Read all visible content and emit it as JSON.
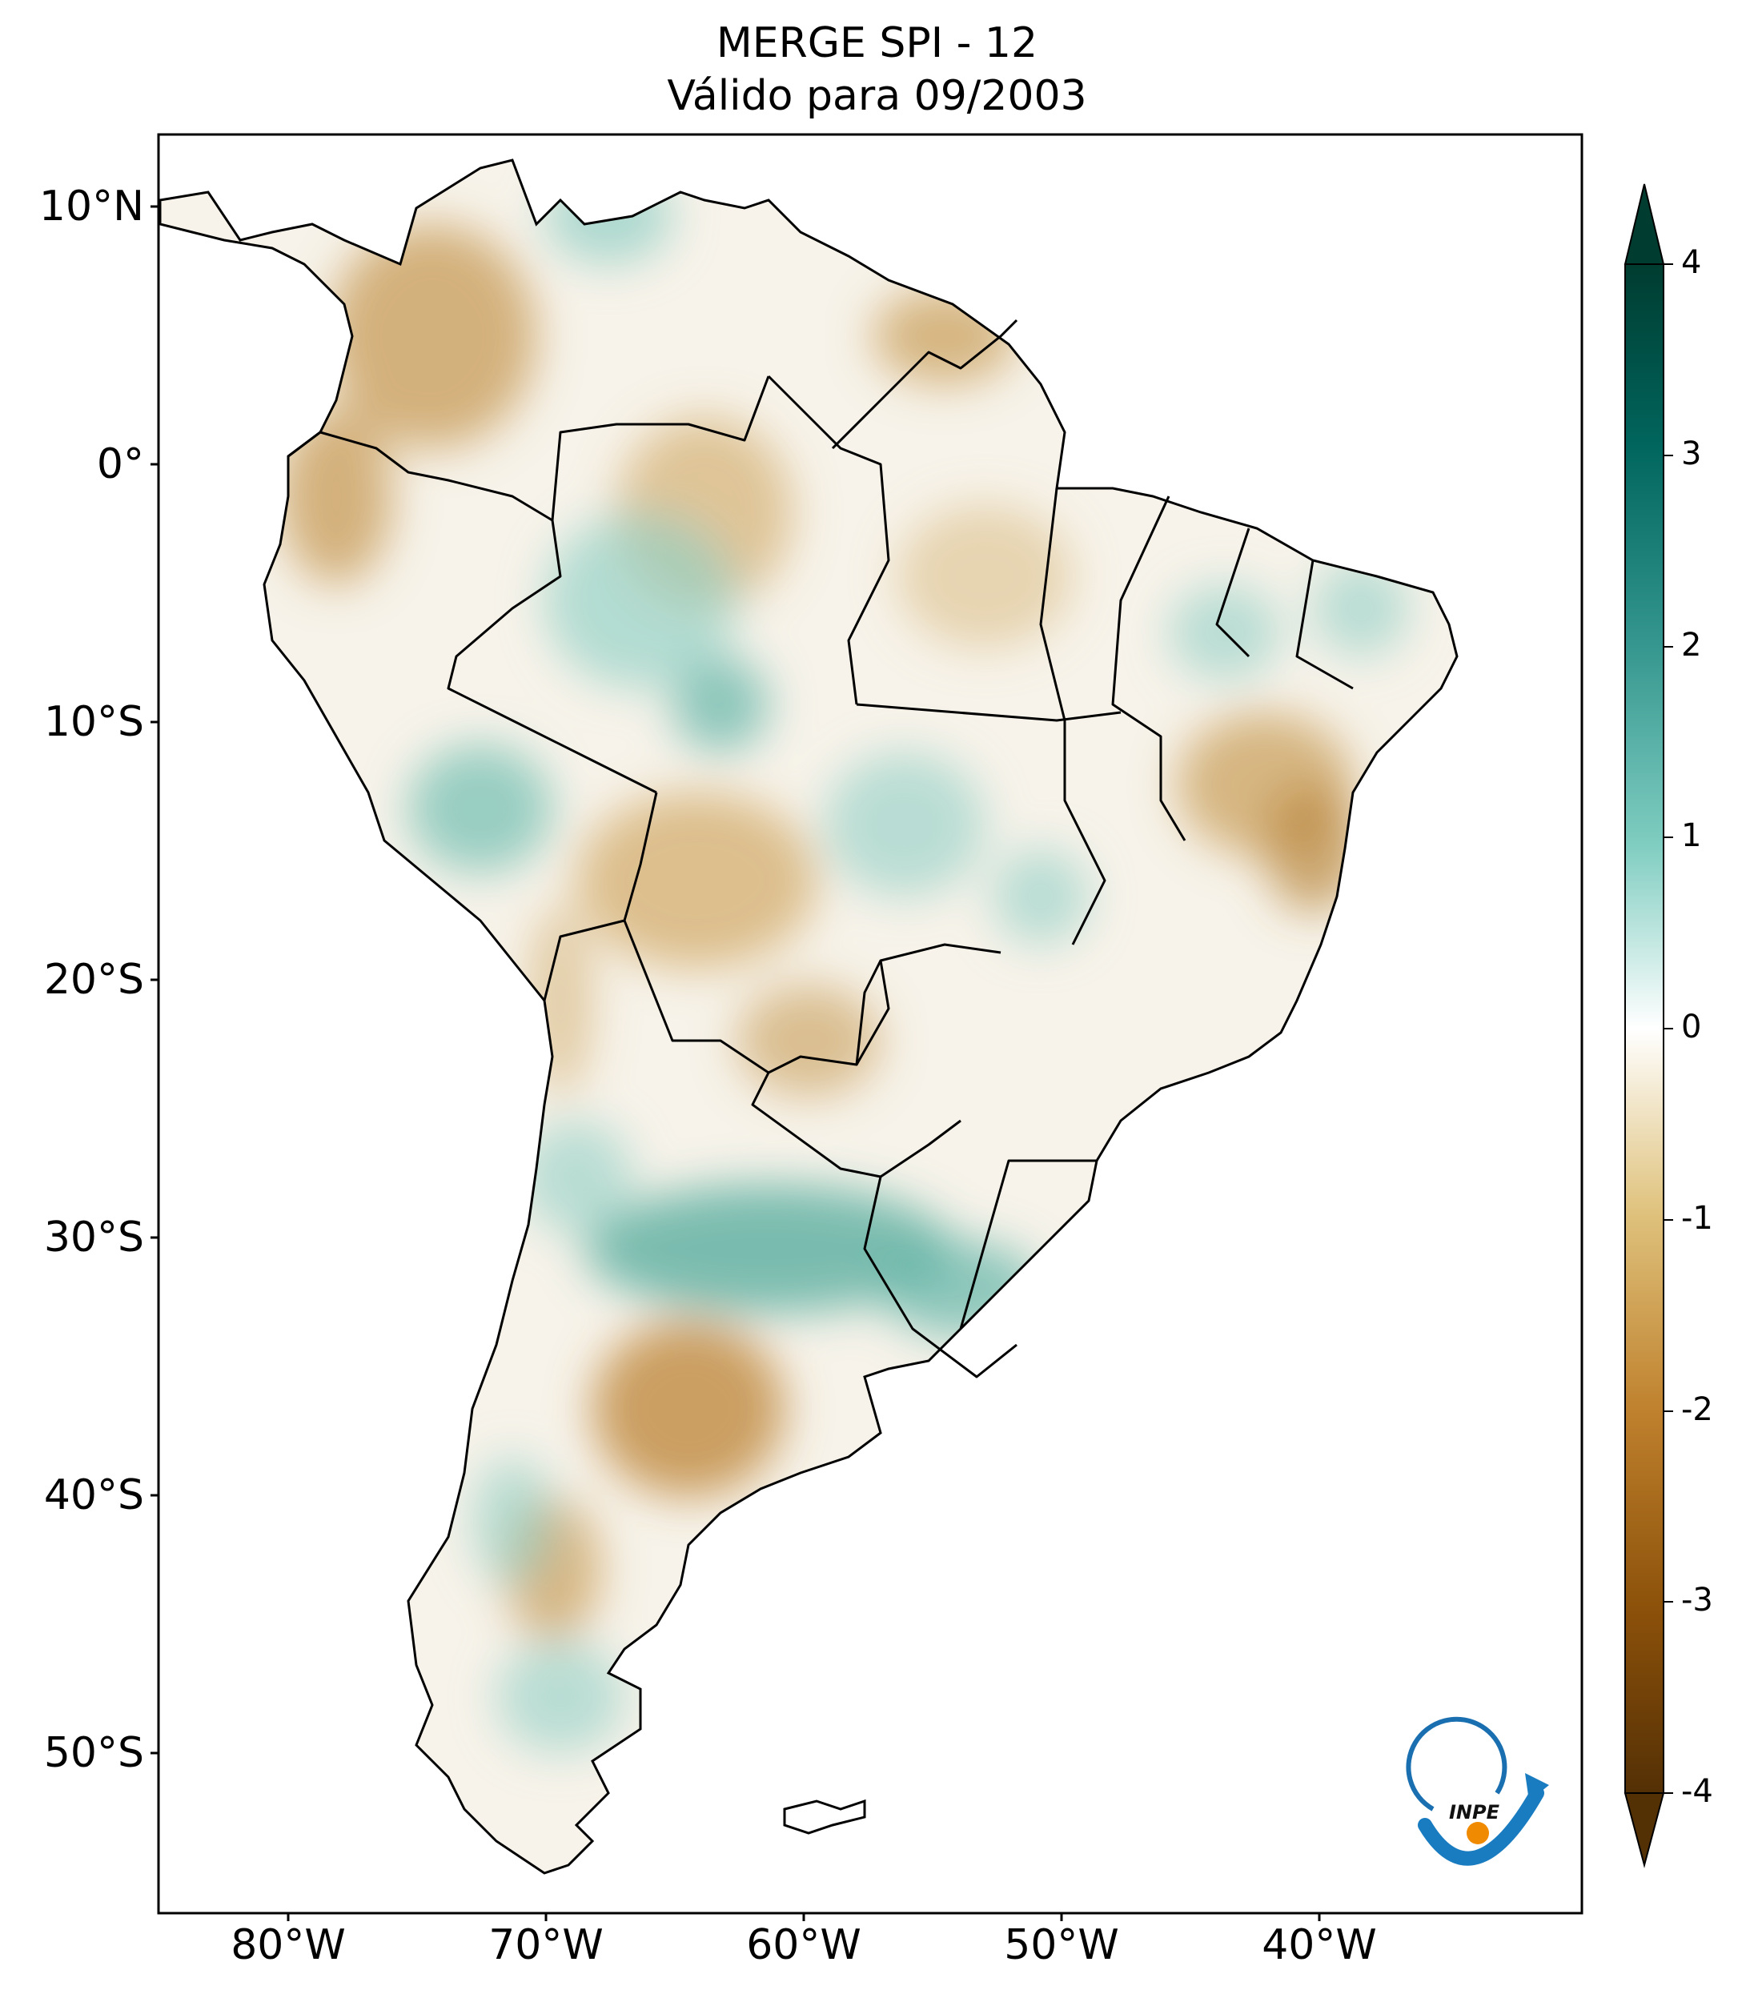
{
  "title": {
    "line1": "MERGE   SPI - 12",
    "line2": "Válido para 09/2003"
  },
  "axes": {
    "lat_ticks": [
      "10°N",
      "0°",
      "10°S",
      "20°S",
      "30°S",
      "40°S",
      "50°S"
    ],
    "lon_ticks": [
      "80°W",
      "70°W",
      "60°W",
      "50°W",
      "40°W"
    ]
  },
  "colorbar": {
    "ticks": [
      "4",
      "3",
      "2",
      "1",
      "0",
      "-1",
      "-2",
      "-3",
      "-4"
    ],
    "range": [
      -4,
      4
    ],
    "colormap": "BrBG",
    "extend": "both"
  },
  "logo": {
    "text": "INPE"
  },
  "colors": {
    "dry": "#c9a25c",
    "wet": "#5fb3a6",
    "land_neutral": "#f7f3ea",
    "border": "#000000"
  }
}
